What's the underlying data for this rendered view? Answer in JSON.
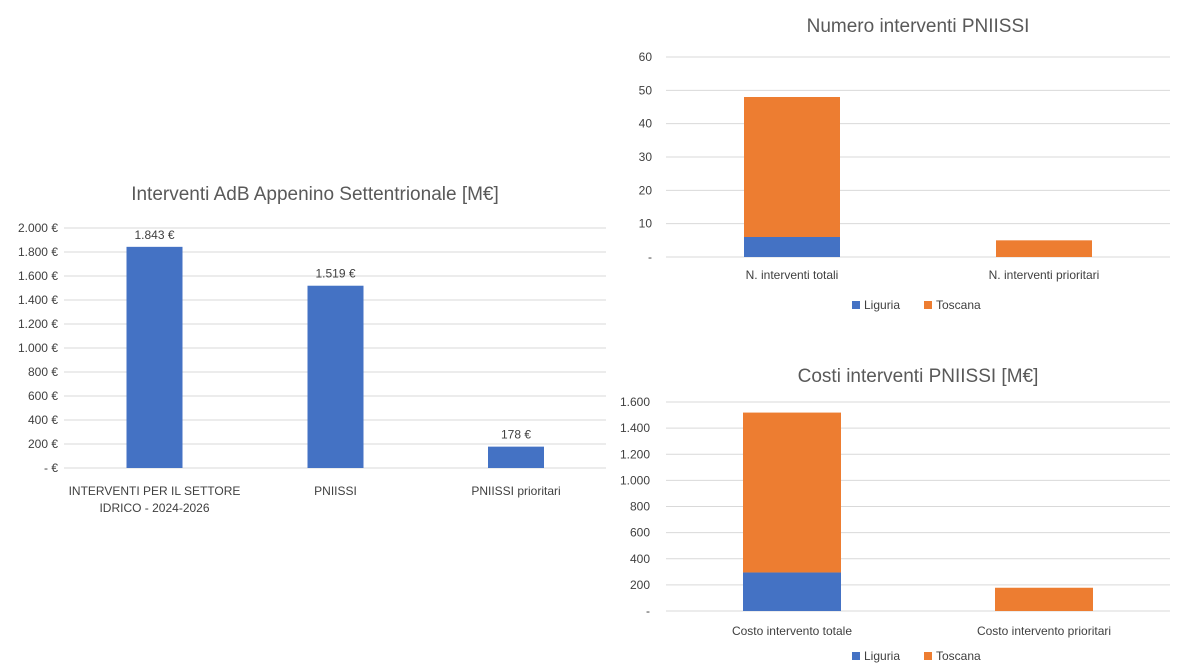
{
  "colors": {
    "blue": "#4472c4",
    "orange": "#ed7d31",
    "grid": "#d9d9d9",
    "text": "#404040",
    "title": "#595959"
  },
  "chart_data": [
    {
      "type": "bar",
      "title": "Interventi AdB Appenino Settentrionale [M€]",
      "categories": [
        "INTERVENTI PER IL SETTORE IDRICO - 2024-2026",
        "PNIISSI",
        "PNIISSI prioritari"
      ],
      "category_lines": [
        [
          "INTERVENTI PER IL SETTORE",
          "IDRICO - 2024-2026"
        ],
        [
          "PNIISSI"
        ],
        [
          "PNIISSI prioritari"
        ]
      ],
      "values": [
        1843,
        1519,
        178
      ],
      "data_labels": [
        "1.843 €",
        "1.519 €",
        "178 €"
      ],
      "ylim": [
        0,
        2000
      ],
      "y_ticks": [
        0,
        200,
        400,
        600,
        800,
        1000,
        1200,
        1400,
        1600,
        1800,
        2000
      ],
      "y_tick_labels": [
        "-   €",
        "200 €",
        "400 €",
        "600 €",
        "800 €",
        "1.000 €",
        "1.200 €",
        "1.400 €",
        "1.600 €",
        "1.800 €",
        "2.000 €"
      ],
      "grid": true,
      "legend": "none"
    },
    {
      "type": "bar",
      "stacked": true,
      "title": "Numero interventi PNIISSI",
      "categories": [
        "N. interventi totali",
        "N. interventi prioritari"
      ],
      "series": [
        {
          "name": "Liguria",
          "values": [
            6,
            0
          ]
        },
        {
          "name": "Toscana",
          "values": [
            42,
            5
          ]
        }
      ],
      "ylim": [
        0,
        60
      ],
      "y_ticks": [
        0,
        10,
        20,
        30,
        40,
        50,
        60
      ],
      "y_tick_labels": [
        "-",
        "10",
        "20",
        "30",
        "40",
        "50",
        "60"
      ],
      "grid": true,
      "legend": "bottom"
    },
    {
      "type": "bar",
      "stacked": true,
      "title": "Costi interventi PNIISSI [M€]",
      "categories": [
        "Costo intervento totale",
        "Costo intervento prioritari"
      ],
      "series": [
        {
          "name": "Liguria",
          "values": [
            295,
            0
          ]
        },
        {
          "name": "Toscana",
          "values": [
            1224,
            178
          ]
        }
      ],
      "ylim": [
        0,
        1600
      ],
      "y_ticks": [
        0,
        200,
        400,
        600,
        800,
        1000,
        1200,
        1400,
        1600
      ],
      "y_tick_labels": [
        "-",
        "200",
        "400",
        "600",
        "800",
        "1.000",
        "1.200",
        "1.400",
        "1.600"
      ],
      "grid": true,
      "legend": "bottom"
    }
  ]
}
